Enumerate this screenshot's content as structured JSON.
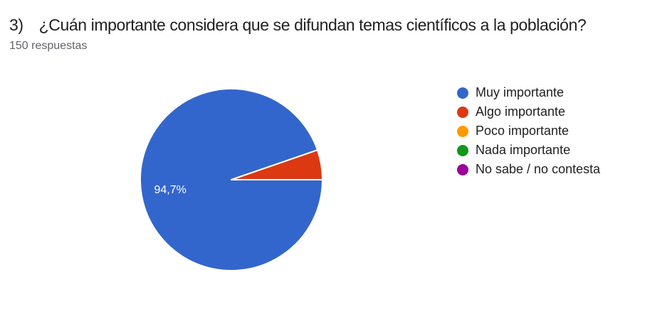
{
  "header": {
    "question_number": "3)",
    "question_text": "¿Cuán importante considera que se difundan temas científicos a la población?",
    "responses_count": "150 respuestas"
  },
  "chart_data": {
    "type": "pie",
    "title": "3) ¿Cuán importante considera que se difundan temas científicos a la población?",
    "subtitle": "150 respuestas",
    "categories": [
      "Muy importante",
      "Algo importante",
      "Poco importante",
      "Nada importante",
      "No sabe / no contesta"
    ],
    "values_percent": [
      94.7,
      5.3,
      0,
      0,
      0
    ],
    "colors": [
      "#3366cc",
      "#dc3912",
      "#ff9900",
      "#109618",
      "#990099"
    ],
    "percent_label": "94,7%",
    "percent_label_slice_index": 0,
    "percent_label_color": "#ffffff",
    "start_angle_deg": 0,
    "direction": "clockwise",
    "legend_position": "right",
    "background": "#ffffff"
  }
}
